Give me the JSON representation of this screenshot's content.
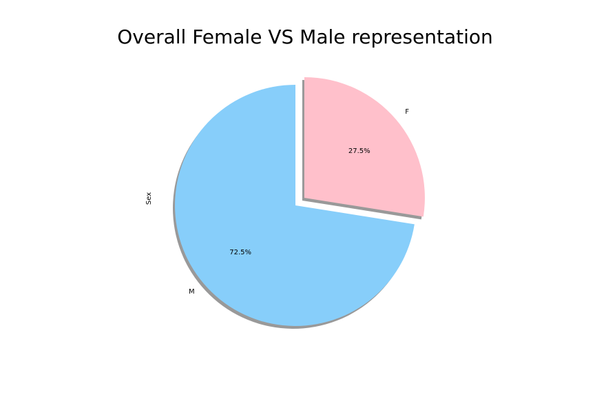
{
  "chart_data": {
    "type": "pie",
    "title": "Overall Female VS Male representation",
    "ylabel": "Sex",
    "slices": [
      {
        "label": "F",
        "value": 27.5,
        "pct_label": "27.5%",
        "color": "#ffc0cb",
        "exploded": true
      },
      {
        "label": "M",
        "value": 72.5,
        "pct_label": "72.5%",
        "color": "#87cefa",
        "exploded": false
      }
    ],
    "start_angle_deg": 90,
    "direction": "clockwise",
    "shadow": true
  }
}
